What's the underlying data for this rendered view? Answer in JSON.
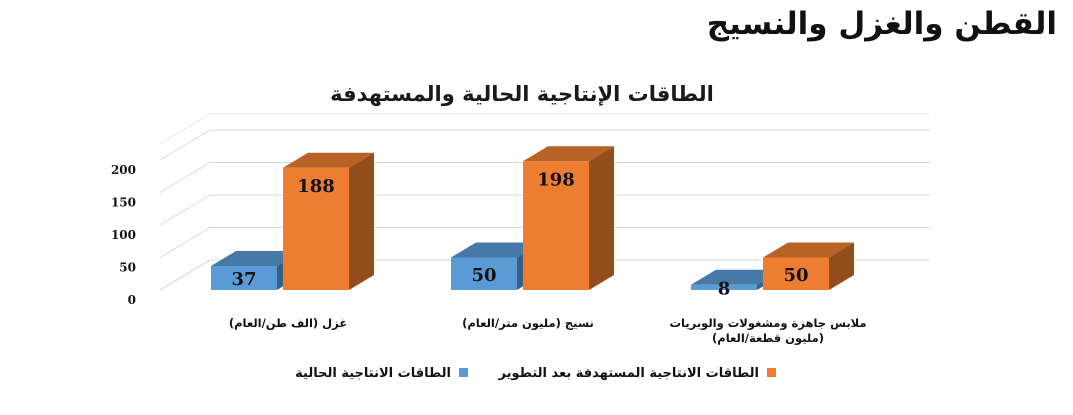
{
  "page": {
    "heading": "القطن والغزل والنسيج"
  },
  "chart_data": {
    "type": "bar",
    "title": "الطاقات الإنتاجية الحالية والمستهدفة",
    "categories": [
      [
        "غزل (الف طن/العام)"
      ],
      [
        "نسيج (مليون متر/العام)"
      ],
      [
        "ملابس جاهزة ومشغولات والوبريات",
        "(مليون قطعة/العام)"
      ]
    ],
    "series": [
      {
        "name": "الطاقات الانتاجية الحالية",
        "values": [
          37,
          50,
          8
        ],
        "color": "#5b9bd5"
      },
      {
        "name": "الطاقات الانتاجية المستهدفة بعد التطوير",
        "values": [
          188,
          198,
          50
        ],
        "color": "#ed7d31"
      }
    ],
    "yticks": [
      0,
      50,
      100,
      150,
      200
    ],
    "ylim": [
      0,
      200
    ],
    "grid": true,
    "legend_position": "bottom"
  }
}
